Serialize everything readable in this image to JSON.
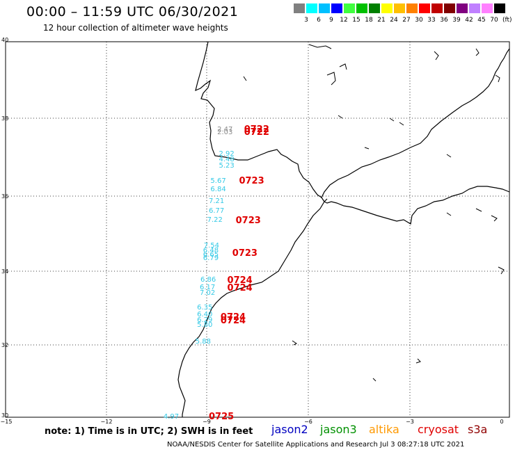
{
  "header": {
    "title": "00:00 – 11:59 UTC 06/30/2021",
    "subtitle": "12 hour collection of altimeter wave heights"
  },
  "legend": {
    "colors": [
      "#808080",
      "#00ffff",
      "#00c0ff",
      "#0000ff",
      "#40ff40",
      "#00c000",
      "#008000",
      "#ffff00",
      "#ffc000",
      "#ff8000",
      "#ff0000",
      "#c00000",
      "#800000",
      "#800080",
      "#c080ff",
      "#ff80ff",
      "#000000"
    ],
    "labels": [
      "3",
      "6",
      "9",
      "12",
      "15",
      "18",
      "21",
      "24",
      "27",
      "30",
      "33",
      "36",
      "39",
      "42",
      "45",
      "70"
    ],
    "unit": "(ft)"
  },
  "axes": {
    "lat_ticks": [
      "40",
      "38",
      "36",
      "34",
      "32",
      "30"
    ],
    "lon_ticks": [
      "−15",
      "−12",
      "−9",
      "−6",
      "−3",
      "0"
    ]
  },
  "observations": [
    {
      "value": "2.47",
      "lon": -8.7,
      "lat": 37.65,
      "color": "gray"
    },
    {
      "value": "2.03",
      "lon": -8.7,
      "lat": 37.58,
      "color": "gray"
    },
    {
      "value": "2.92",
      "lon": -8.65,
      "lat": 37.0,
      "color": "cyan"
    },
    {
      "value": "4.48",
      "lon": -8.65,
      "lat": 36.85,
      "color": "cyan"
    },
    {
      "value": "5.23",
      "lon": -8.65,
      "lat": 36.68,
      "color": "cyan"
    },
    {
      "value": "5.67",
      "lon": -8.9,
      "lat": 36.28,
      "color": "cyan"
    },
    {
      "value": "6.84",
      "lon": -8.9,
      "lat": 36.05,
      "color": "cyan"
    },
    {
      "value": "7.21",
      "lon": -8.95,
      "lat": 35.75,
      "color": "cyan"
    },
    {
      "value": "6.77",
      "lon": -8.95,
      "lat": 35.48,
      "color": "cyan"
    },
    {
      "value": "7.22",
      "lon": -9.0,
      "lat": 35.25,
      "color": "cyan"
    },
    {
      "value": "7.54",
      "lon": -9.1,
      "lat": 34.55,
      "color": "cyan"
    },
    {
      "value": "6.48",
      "lon": -9.12,
      "lat": 34.42,
      "color": "cyan"
    },
    {
      "value": "6.65",
      "lon": -9.12,
      "lat": 34.32,
      "color": "cyan"
    },
    {
      "value": "6.79",
      "lon": -9.12,
      "lat": 34.22,
      "color": "cyan"
    },
    {
      "value": "6.86",
      "lon": -9.2,
      "lat": 33.65,
      "color": "cyan"
    },
    {
      "value": "6.17",
      "lon": -9.22,
      "lat": 33.45,
      "color": "cyan"
    },
    {
      "value": "7.02",
      "lon": -9.22,
      "lat": 33.3,
      "color": "cyan"
    },
    {
      "value": "6.35",
      "lon": -9.3,
      "lat": 32.9,
      "color": "cyan"
    },
    {
      "value": "6.40",
      "lon": -9.3,
      "lat": 32.72,
      "color": "cyan"
    },
    {
      "value": "6.29",
      "lon": -9.3,
      "lat": 32.58,
      "color": "cyan"
    },
    {
      "value": "5.80",
      "lon": -9.3,
      "lat": 32.45,
      "color": "cyan"
    },
    {
      "value": "5.88",
      "lon": -9.35,
      "lat": 32.0,
      "color": "cyan"
    },
    {
      "value": "4.97",
      "lon": -10.3,
      "lat": 30.0,
      "color": "cyan"
    }
  ],
  "pass_labels": [
    {
      "text": "0722",
      "lon": -7.9,
      "lat": 37.65
    },
    {
      "text": "0722",
      "lon": -7.9,
      "lat": 37.57
    },
    {
      "text": "0723",
      "lon": -8.05,
      "lat": 36.27
    },
    {
      "text": "0723",
      "lon": -8.15,
      "lat": 35.23
    },
    {
      "text": "0723",
      "lon": -8.25,
      "lat": 34.35
    },
    {
      "text": "0724",
      "lon": -8.4,
      "lat": 33.63
    },
    {
      "text": "0724",
      "lon": -8.4,
      "lat": 33.42
    },
    {
      "text": "0724",
      "lon": -8.6,
      "lat": 32.65
    },
    {
      "text": "0724",
      "lon": -8.6,
      "lat": 32.55
    },
    {
      "text": "0725",
      "lon": -8.95,
      "lat": 30.0
    }
  ],
  "footer": {
    "note": "note: 1) Time is in UTC; 2) SWH is in feet",
    "satellites": [
      {
        "name": "jason2",
        "color": "#0000c0"
      },
      {
        "name": "jason3",
        "color": "#009000"
      },
      {
        "name": "altika",
        "color": "#ff9900"
      },
      {
        "name": "cryosat",
        "color": "#e00000"
      },
      {
        "name": "s3a",
        "color": "#900000"
      }
    ],
    "credit": "NOAA/NESDIS Center for Satellite Applications and Research   Jul  3 08:27:18 UTC 2021"
  }
}
